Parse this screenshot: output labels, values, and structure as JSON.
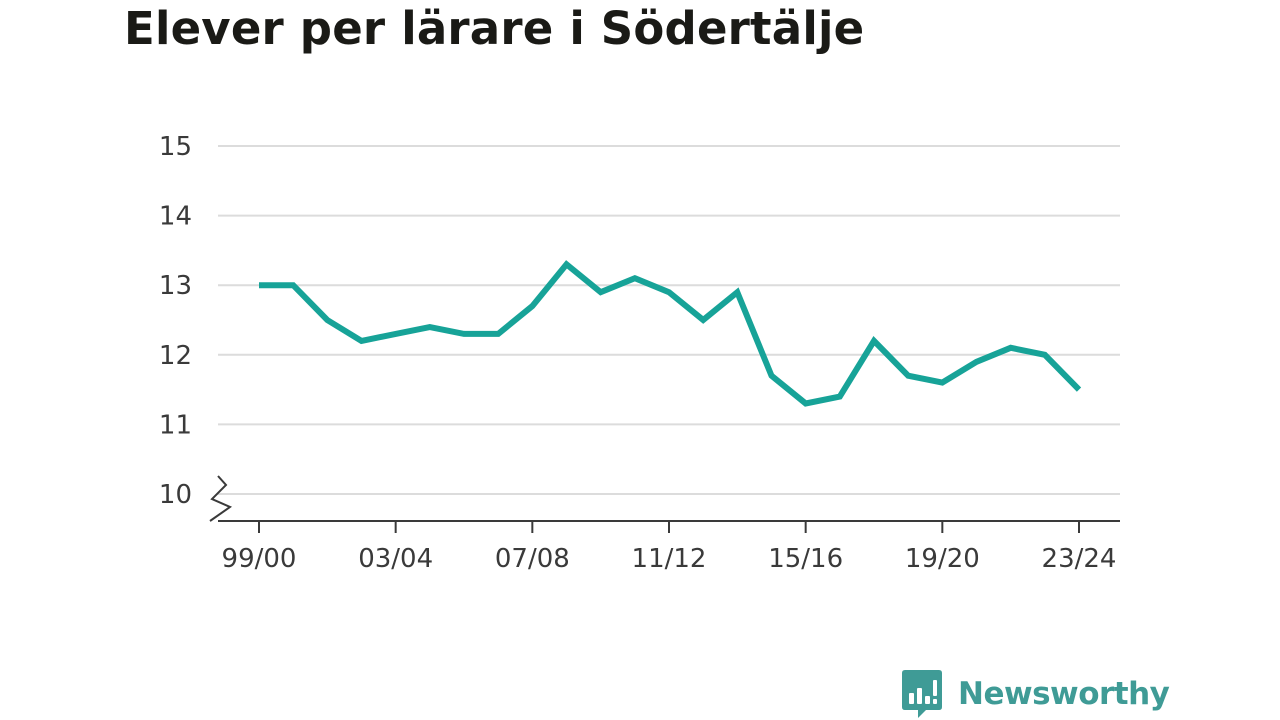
{
  "chart_data": {
    "type": "line",
    "title": "Elever per lärare i Södertälje",
    "xlabel": "",
    "ylabel": "",
    "x": [
      "99/00",
      "00/01",
      "01/02",
      "02/03",
      "03/04",
      "04/05",
      "05/06",
      "06/07",
      "07/08",
      "08/09",
      "09/10",
      "10/11",
      "11/12",
      "12/13",
      "13/14",
      "14/15",
      "15/16",
      "16/17",
      "17/18",
      "18/19",
      "19/20",
      "20/21",
      "21/22",
      "22/23",
      "23/24"
    ],
    "x_tick_labels": [
      "99/00",
      "03/04",
      "07/08",
      "11/12",
      "15/16",
      "19/20",
      "23/24"
    ],
    "y_ticks": [
      10,
      11,
      12,
      13,
      14,
      15
    ],
    "ylim": [
      10,
      15
    ],
    "y_axis_break": true,
    "grid": true,
    "line_color": "#17a398",
    "series": [
      {
        "values": [
          13.0,
          13.0,
          12.5,
          12.2,
          12.3,
          12.4,
          12.3,
          12.3,
          12.7,
          13.3,
          12.9,
          13.1,
          12.9,
          12.5,
          12.9,
          11.7,
          11.3,
          11.4,
          12.2,
          11.7,
          11.6,
          11.9,
          12.1,
          12.0,
          11.5
        ]
      }
    ]
  },
  "brand": {
    "name": "Newsworthy",
    "color": "#3f9b96",
    "icon": "bar-chart-speech-bubble-icon"
  }
}
